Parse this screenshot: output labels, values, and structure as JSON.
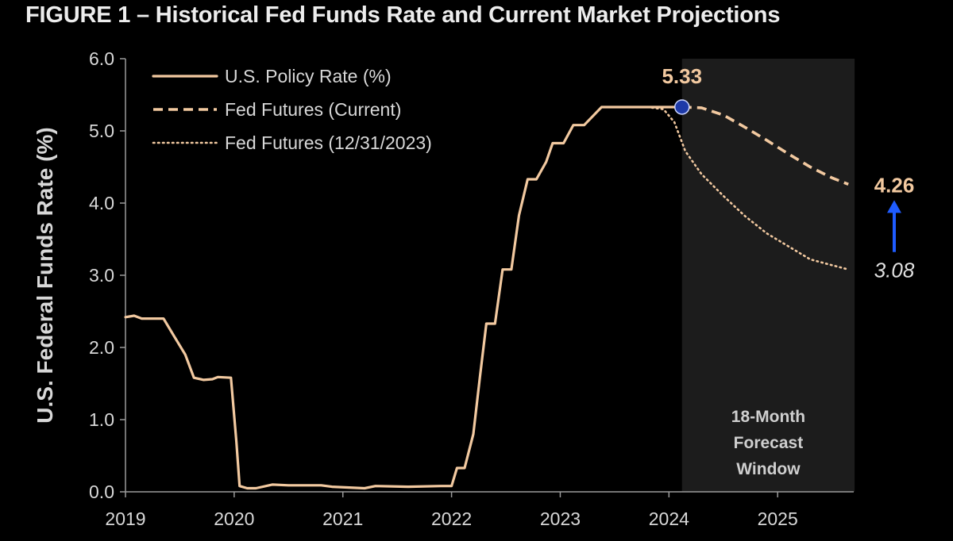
{
  "figure": {
    "title": "FIGURE 1 – Historical Fed Funds Rate and Current Market Projections"
  },
  "colors": {
    "background": "#000000",
    "line": "#f2c9a0",
    "forecast_shade": "#1c1c1c",
    "marker": "#1e3aa8",
    "arrow": "#1f5cff",
    "text": "#d8d8d8"
  },
  "chart_data": {
    "type": "line",
    "title": "",
    "xlabel": "",
    "ylabel": "U.S. Federal Funds Rate (%)",
    "xlim": [
      2019.0,
      2025.7
    ],
    "ylim": [
      0,
      6
    ],
    "x_ticks": [
      2019,
      2020,
      2021,
      2022,
      2023,
      2024,
      2025
    ],
    "x_tick_labels": [
      "2019",
      "2020",
      "2021",
      "2022",
      "2023",
      "2024",
      "2025"
    ],
    "y_ticks": [
      0,
      1,
      2,
      3,
      4,
      5,
      6
    ],
    "y_tick_labels": [
      "0.0",
      "1.0",
      "2.0",
      "3.0",
      "4.0",
      "5.0",
      "6.0"
    ],
    "grid": false,
    "legend_position": "top-left",
    "series": [
      {
        "name": "U.S. Policy Rate (%)",
        "style": "solid",
        "points": [
          [
            2019.0,
            2.42
          ],
          [
            2019.08,
            2.44
          ],
          [
            2019.15,
            2.4
          ],
          [
            2019.35,
            2.4
          ],
          [
            2019.45,
            2.15
          ],
          [
            2019.55,
            1.9
          ],
          [
            2019.63,
            1.58
          ],
          [
            2019.72,
            1.55
          ],
          [
            2019.8,
            1.56
          ],
          [
            2019.85,
            1.59
          ],
          [
            2019.97,
            1.58
          ],
          [
            2020.02,
            0.7
          ],
          [
            2020.05,
            0.08
          ],
          [
            2020.12,
            0.05
          ],
          [
            2020.2,
            0.05
          ],
          [
            2020.35,
            0.1
          ],
          [
            2020.5,
            0.09
          ],
          [
            2020.8,
            0.09
          ],
          [
            2020.9,
            0.07
          ],
          [
            2021.2,
            0.05
          ],
          [
            2021.3,
            0.08
          ],
          [
            2021.6,
            0.07
          ],
          [
            2021.9,
            0.08
          ],
          [
            2022.0,
            0.08
          ],
          [
            2022.05,
            0.33
          ],
          [
            2022.12,
            0.33
          ],
          [
            2022.2,
            0.8
          ],
          [
            2022.26,
            1.58
          ],
          [
            2022.32,
            2.33
          ],
          [
            2022.4,
            2.33
          ],
          [
            2022.47,
            3.08
          ],
          [
            2022.55,
            3.08
          ],
          [
            2022.62,
            3.83
          ],
          [
            2022.7,
            4.33
          ],
          [
            2022.78,
            4.33
          ],
          [
            2022.87,
            4.57
          ],
          [
            2022.93,
            4.83
          ],
          [
            2023.03,
            4.83
          ],
          [
            2023.12,
            5.08
          ],
          [
            2023.22,
            5.08
          ],
          [
            2023.38,
            5.33
          ],
          [
            2024.1,
            5.33
          ],
          [
            2024.12,
            5.33
          ]
        ]
      },
      {
        "name": "Fed Futures (Current)",
        "style": "dashed",
        "points": [
          [
            2024.12,
            5.33
          ],
          [
            2024.3,
            5.32
          ],
          [
            2024.5,
            5.22
          ],
          [
            2024.7,
            5.05
          ],
          [
            2024.9,
            4.87
          ],
          [
            2025.1,
            4.68
          ],
          [
            2025.3,
            4.5
          ],
          [
            2025.5,
            4.35
          ],
          [
            2025.65,
            4.26
          ]
        ]
      },
      {
        "name": "Fed Futures (12/31/2023)",
        "style": "dotted",
        "points": [
          [
            2023.8,
            5.33
          ],
          [
            2023.95,
            5.3
          ],
          [
            2024.05,
            5.12
          ],
          [
            2024.15,
            4.72
          ],
          [
            2024.3,
            4.4
          ],
          [
            2024.5,
            4.1
          ],
          [
            2024.7,
            3.82
          ],
          [
            2024.9,
            3.58
          ],
          [
            2025.1,
            3.4
          ],
          [
            2025.3,
            3.22
          ],
          [
            2025.5,
            3.14
          ],
          [
            2025.65,
            3.08
          ]
        ]
      }
    ],
    "forecast_window": {
      "x_start": 2024.12,
      "x_end": 2025.65,
      "label_lines": [
        "18-Month",
        "Forecast",
        "Window"
      ]
    },
    "marker": {
      "x": 2024.12,
      "y": 5.33,
      "label": "5.33"
    },
    "end_labels": [
      {
        "x": 2025.65,
        "y": 4.26,
        "label": "4.26"
      },
      {
        "x": 2025.65,
        "y": 3.08,
        "label": "3.08"
      }
    ]
  }
}
